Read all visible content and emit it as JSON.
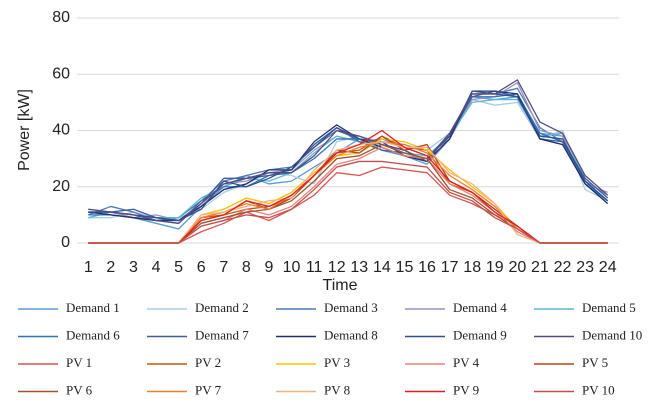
{
  "chart_data": {
    "type": "line",
    "xlabel": "Time",
    "ylabel": "Power [kW]",
    "categories": [
      "1",
      "2",
      "3",
      "4",
      "5",
      "6",
      "7",
      "8",
      "9",
      "10",
      "11",
      "12",
      "13",
      "14",
      "15",
      "16",
      "17",
      "18",
      "19",
      "20",
      "21",
      "22",
      "23",
      "24"
    ],
    "ylim": [
      0,
      80
    ],
    "yticks": [
      0,
      20,
      40,
      60,
      80
    ],
    "grid": true,
    "legend": "bottom",
    "series": [
      {
        "name": "Demand 1",
        "color": "#5b9bd5",
        "values": [
          11,
          10,
          9,
          7,
          5,
          13,
          20,
          24,
          21,
          22,
          27,
          32,
          37,
          33,
          31,
          28,
          37,
          52,
          51,
          52,
          39,
          38,
          22,
          17
        ]
      },
      {
        "name": "Demand 2",
        "color": "#a9cbe6",
        "values": [
          9,
          9,
          11,
          9,
          9,
          12,
          18,
          21,
          25,
          24,
          21,
          36,
          38,
          36,
          35,
          33,
          39,
          51,
          49,
          50,
          37,
          40,
          19,
          15
        ]
      },
      {
        "name": "Demand 3",
        "color": "#4a7ab8",
        "values": [
          10,
          13,
          11,
          8,
          9,
          15,
          22,
          24,
          26,
          27,
          34,
          40,
          37,
          35,
          33,
          29,
          39,
          53,
          53,
          55,
          41,
          36,
          22,
          15
        ]
      },
      {
        "name": "Demand 4",
        "color": "#9a92c4",
        "values": [
          12,
          11,
          9,
          10,
          8,
          13,
          21,
          22,
          25,
          26,
          33,
          38,
          36,
          37,
          34,
          31,
          37,
          51,
          52,
          57,
          40,
          38,
          21,
          18
        ]
      },
      {
        "name": "Demand 5",
        "color": "#5bb8d3",
        "values": [
          9,
          11,
          10,
          9,
          9,
          16,
          20,
          23,
          22,
          25,
          32,
          38,
          36,
          35,
          32,
          31,
          38,
          50,
          51,
          51,
          38,
          39,
          23,
          16
        ]
      },
      {
        "name": "Demand 6",
        "color": "#2e75b6",
        "values": [
          10,
          10,
          9,
          8,
          7,
          15,
          20,
          20,
          24,
          25,
          30,
          37,
          37,
          34,
          31,
          30,
          39,
          52,
          52,
          53,
          39,
          36,
          21,
          15
        ]
      },
      {
        "name": "Demand 7",
        "color": "#3e5f9a",
        "values": [
          11,
          11,
          12,
          9,
          8,
          14,
          23,
          23,
          24,
          26,
          35,
          41,
          36,
          33,
          32,
          30,
          38,
          52,
          54,
          52,
          37,
          36,
          23,
          16
        ]
      },
      {
        "name": "Demand 8",
        "color": "#1f2f6e",
        "values": [
          11,
          10,
          9,
          8,
          8,
          13,
          19,
          21,
          26,
          26,
          36,
          42,
          37,
          34,
          31,
          29,
          37,
          54,
          54,
          53,
          37,
          35,
          21,
          14
        ]
      },
      {
        "name": "Demand 9",
        "color": "#2f4f8f",
        "values": [
          11,
          11,
          10,
          9,
          8,
          12,
          22,
          20,
          23,
          27,
          34,
          41,
          37,
          36,
          31,
          30,
          38,
          54,
          53,
          52,
          38,
          37,
          22,
          15
        ]
      },
      {
        "name": "Demand 10",
        "color": "#5a4a7a",
        "values": [
          12,
          11,
          10,
          8,
          7,
          14,
          21,
          23,
          25,
          25,
          31,
          40,
          38,
          35,
          33,
          29,
          39,
          53,
          53,
          58,
          43,
          39,
          24,
          17
        ]
      },
      {
        "name": "PV 1",
        "color": "#d9534f",
        "values": [
          0,
          0,
          0,
          0,
          0,
          4,
          7,
          11,
          8,
          12,
          17,
          25,
          24,
          27,
          26,
          25,
          17,
          14,
          10,
          6,
          0,
          0,
          0,
          0
        ]
      },
      {
        "name": "PV 2",
        "color": "#c55a11",
        "values": [
          0,
          0,
          0,
          0,
          0,
          9,
          10,
          12,
          13,
          16,
          24,
          32,
          33,
          38,
          34,
          33,
          21,
          18,
          12,
          6,
          0,
          0,
          0,
          0
        ]
      },
      {
        "name": "PV 3",
        "color": "#ffc000",
        "values": [
          0,
          0,
          0,
          0,
          0,
          10,
          12,
          16,
          14,
          18,
          25,
          31,
          32,
          37,
          36,
          33,
          26,
          20,
          14,
          5,
          0,
          0,
          0,
          0
        ]
      },
      {
        "name": "PV 4",
        "color": "#e8837a",
        "values": [
          0,
          0,
          0,
          0,
          0,
          6,
          8,
          12,
          10,
          13,
          20,
          28,
          30,
          34,
          31,
          30,
          21,
          17,
          11,
          4,
          0,
          0,
          0,
          0
        ]
      },
      {
        "name": "PV 5",
        "color": "#b5451b",
        "values": [
          0,
          0,
          0,
          0,
          0,
          8,
          10,
          15,
          12,
          16,
          24,
          33,
          32,
          38,
          33,
          35,
          22,
          18,
          12,
          6,
          0,
          0,
          0,
          0
        ]
      },
      {
        "name": "PV 6",
        "color": "#a0522d",
        "values": [
          0,
          0,
          0,
          0,
          0,
          7,
          9,
          11,
          12,
          15,
          22,
          30,
          31,
          35,
          32,
          30,
          19,
          16,
          10,
          5,
          0,
          0,
          0,
          0
        ]
      },
      {
        "name": "PV 7",
        "color": "#ed7d31",
        "values": [
          0,
          0,
          0,
          0,
          0,
          9,
          11,
          14,
          12,
          17,
          24,
          31,
          34,
          36,
          35,
          32,
          24,
          19,
          13,
          5,
          0,
          0,
          0,
          0
        ]
      },
      {
        "name": "PV 8",
        "color": "#f4b183",
        "values": [
          0,
          0,
          0,
          0,
          0,
          10,
          11,
          13,
          15,
          16,
          26,
          33,
          35,
          36,
          34,
          34,
          25,
          21,
          14,
          3,
          0,
          0,
          0,
          0
        ]
      },
      {
        "name": "PV 9",
        "color": "#e02020",
        "values": [
          0,
          0,
          0,
          0,
          0,
          8,
          10,
          15,
          13,
          17,
          24,
          32,
          35,
          40,
          34,
          31,
          22,
          18,
          11,
          6,
          0,
          0,
          0,
          0
        ]
      },
      {
        "name": "PV 10",
        "color": "#c0504d",
        "values": [
          0,
          0,
          0,
          0,
          0,
          6,
          8,
          10,
          9,
          12,
          19,
          27,
          29,
          29,
          28,
          27,
          18,
          15,
          9,
          5,
          0,
          0,
          0,
          0
        ]
      }
    ]
  }
}
